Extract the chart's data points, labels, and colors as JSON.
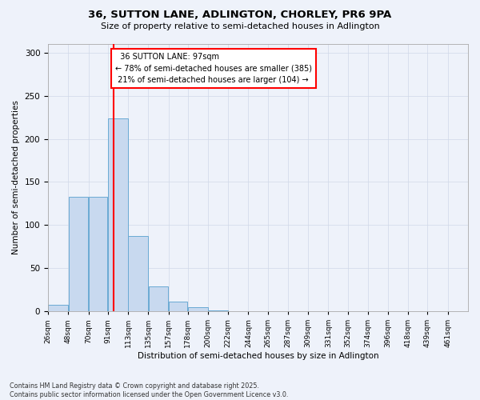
{
  "title_line1": "36, SUTTON LANE, ADLINGTON, CHORLEY, PR6 9PA",
  "title_line2": "Size of property relative to semi-detached houses in Adlington",
  "xlabel": "Distribution of semi-detached houses by size in Adlington",
  "ylabel": "Number of semi-detached properties",
  "categories": [
    "26sqm",
    "48sqm",
    "70sqm",
    "91sqm",
    "113sqm",
    "135sqm",
    "157sqm",
    "178sqm",
    "200sqm",
    "222sqm",
    "244sqm",
    "265sqm",
    "287sqm",
    "309sqm",
    "331sqm",
    "352sqm",
    "374sqm",
    "396sqm",
    "418sqm",
    "439sqm",
    "461sqm"
  ],
  "values": [
    7,
    133,
    133,
    224,
    87,
    29,
    11,
    5,
    1,
    0,
    0,
    0,
    0,
    0,
    0,
    0,
    0,
    0,
    0,
    0,
    0
  ],
  "bar_color": "#c8d9ef",
  "bar_edge_color": "#6aaad4",
  "property_value": 97,
  "bin_edges": [
    26,
    48,
    70,
    91,
    113,
    135,
    157,
    178,
    200,
    222,
    244,
    265,
    287,
    309,
    331,
    352,
    374,
    396,
    418,
    439,
    461,
    483
  ],
  "property_line_label": "36 SUTTON LANE: 97sqm",
  "pct_smaller": 78,
  "pct_smaller_n": 385,
  "pct_larger": 21,
  "pct_larger_n": 104,
  "grid_color": "#d0d8e8",
  "background_color": "#eef2fa",
  "footer_text": "Contains HM Land Registry data © Crown copyright and database right 2025.\nContains public sector information licensed under the Open Government Licence v3.0.",
  "ylim": [
    0,
    310
  ],
  "yticks": [
    0,
    50,
    100,
    150,
    200,
    250,
    300
  ]
}
